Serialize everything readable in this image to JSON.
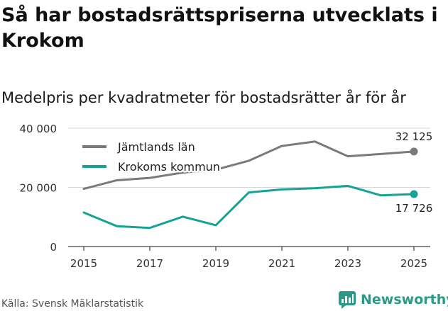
{
  "header": {
    "title": "Så har bostadsrättspriserna utvecklats i Krokom",
    "subtitle": "Medelpris per kvadratmeter för bostadsrätter år för år"
  },
  "footer": {
    "source": "Källa: Svensk Mäklarstatistik",
    "brand": "Newsworthy"
  },
  "colors": {
    "jamtland": "#7a7a7a",
    "krokom": "#14a395",
    "grid": "#d6d6d6",
    "brand": "#2a9a87"
  },
  "chart_data": {
    "type": "line",
    "title": "Så har bostadsrättspriserna utvecklats i Krokom",
    "subtitle": "Medelpris per kvadratmeter för bostadsrätter år för år",
    "x": [
      2015,
      2016,
      2017,
      2018,
      2019,
      2020,
      2021,
      2022,
      2023,
      2024,
      2025
    ],
    "x_ticks": [
      "2015",
      "2017",
      "2019",
      "2021",
      "2023",
      "2025"
    ],
    "y_ticks": [
      "0",
      "20 000",
      "40 000"
    ],
    "ylim": [
      0,
      40000
    ],
    "legend_position": "top-left",
    "series": [
      {
        "name": "Jämtlands län",
        "values": [
          19500,
          22400,
          23200,
          25000,
          26000,
          29000,
          34000,
          35500,
          30500,
          31300,
          32125
        ],
        "end_label": "32 125"
      },
      {
        "name": "Krokoms kommun",
        "values": [
          11500,
          6900,
          6300,
          10100,
          7200,
          18300,
          19300,
          19700,
          20500,
          17300,
          17726
        ],
        "end_label": "17 726"
      }
    ]
  }
}
